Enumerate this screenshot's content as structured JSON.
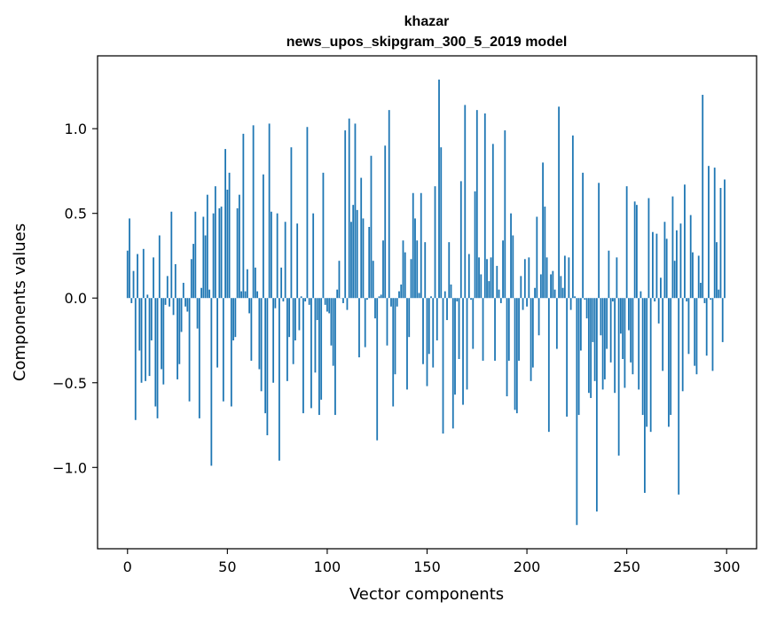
{
  "chart_data": {
    "type": "bar",
    "title_lines": [
      "khazar",
      "news_upos_skipgram_300_5_2019 model"
    ],
    "xlabel": "Vector components",
    "ylabel": "Components values",
    "xlim": [
      -15,
      315
    ],
    "ylim": [
      -1.48,
      1.43
    ],
    "xticks": [
      0,
      50,
      100,
      150,
      200,
      250,
      300
    ],
    "xtick_labels": [
      "0",
      "50",
      "100",
      "150",
      "200",
      "250",
      "300"
    ],
    "yticks": [
      -1.0,
      -0.5,
      0.0,
      0.5,
      1.0
    ],
    "ytick_labels": [
      "−1.0",
      "−0.5",
      "0.0",
      "0.5",
      "1.0"
    ],
    "bar_color": "#1f77b4",
    "values": [
      0.28,
      0.47,
      -0.03,
      0.16,
      -0.72,
      0.26,
      -0.31,
      -0.5,
      0.29,
      -0.49,
      0.02,
      -0.46,
      -0.25,
      0.24,
      -0.64,
      -0.71,
      0.37,
      -0.42,
      -0.51,
      -0.04,
      0.13,
      -0.05,
      0.51,
      -0.1,
      0.2,
      -0.48,
      -0.39,
      -0.2,
      0.09,
      -0.05,
      -0.08,
      -0.61,
      0.23,
      0.32,
      0.51,
      -0.18,
      -0.71,
      0.06,
      0.48,
      0.37,
      0.61,
      0.05,
      -0.99,
      0.5,
      0.66,
      -0.41,
      0.53,
      0.54,
      -0.61,
      0.88,
      0.64,
      0.74,
      -0.64,
      -0.25,
      -0.23,
      0.53,
      0.61,
      0.04,
      0.97,
      0.04,
      0.17,
      -0.09,
      -0.37,
      1.02,
      0.18,
      0.04,
      -0.42,
      -0.55,
      0.73,
      -0.68,
      -0.81,
      1.03,
      0.51,
      -0.5,
      -0.06,
      0.5,
      -0.96,
      0.18,
      -0.02,
      0.45,
      -0.49,
      -0.23,
      0.89,
      -0.39,
      -0.25,
      0.44,
      -0.19,
      0.01,
      -0.68,
      -0.02,
      1.01,
      -0.04,
      -0.65,
      0.5,
      -0.44,
      -0.13,
      -0.69,
      -0.6,
      0.74,
      -0.04,
      -0.08,
      -0.09,
      -0.28,
      -0.4,
      -0.69,
      0.05,
      0.22,
      0.0,
      -0.03,
      0.99,
      -0.07,
      1.06,
      0.45,
      0.55,
      1.03,
      0.52,
      -0.35,
      0.71,
      0.47,
      -0.29,
      -0.01,
      0.42,
      0.84,
      0.22,
      -0.12,
      -0.84,
      0.01,
      0.02,
      0.34,
      0.9,
      -0.28,
      1.11,
      -0.05,
      -0.64,
      -0.45,
      -0.05,
      0.04,
      0.08,
      0.34,
      0.27,
      -0.54,
      -0.23,
      0.23,
      0.62,
      0.47,
      0.34,
      0.03,
      0.62,
      -0.39,
      0.33,
      -0.52,
      -0.33,
      0.01,
      -0.41,
      0.66,
      -0.25,
      1.29,
      0.89,
      -0.8,
      0.04,
      -0.13,
      0.33,
      0.08,
      -0.77,
      -0.57,
      -0.02,
      -0.36,
      0.69,
      -0.63,
      1.14,
      -0.54,
      0.26,
      -0.01,
      -0.3,
      0.63,
      1.11,
      0.24,
      0.14,
      -0.37,
      1.09,
      0.23,
      0.1,
      0.24,
      0.91,
      -0.37,
      0.19,
      0.05,
      -0.03,
      0.34,
      0.99,
      -0.58,
      -0.37,
      0.5,
      0.37,
      -0.66,
      -0.68,
      -0.37,
      0.13,
      -0.07,
      0.23,
      -0.05,
      0.24,
      -0.49,
      -0.41,
      0.06,
      0.48,
      -0.22,
      0.14,
      0.8,
      0.54,
      0.24,
      -0.79,
      0.14,
      0.16,
      0.05,
      -0.3,
      1.13,
      0.13,
      0.06,
      0.25,
      -0.7,
      0.24,
      -0.07,
      0.96,
      0.01,
      -1.34,
      -0.69,
      -0.31,
      0.74,
      -0.01,
      -0.12,
      -0.56,
      -0.59,
      -0.26,
      -0.49,
      -1.26,
      0.68,
      -0.22,
      -0.54,
      -0.48,
      -0.3,
      0.28,
      -0.38,
      -0.02,
      -0.56,
      0.24,
      -0.93,
      -0.21,
      -0.36,
      -0.53,
      0.66,
      -0.19,
      -0.38,
      -0.45,
      0.57,
      0.55,
      -0.54,
      0.04,
      -0.69,
      -1.15,
      -0.76,
      0.59,
      -0.79,
      0.39,
      -0.02,
      0.38,
      -0.15,
      0.12,
      -0.43,
      0.45,
      0.35,
      -0.76,
      -0.69,
      0.6,
      0.22,
      0.4,
      -1.16,
      0.44,
      -0.55,
      0.67,
      -0.02,
      -0.33,
      0.49,
      0.27,
      -0.4,
      -0.45,
      0.25,
      0.09,
      1.2,
      -0.03,
      -0.34,
      0.78,
      -0.01,
      -0.43,
      0.77,
      0.33,
      0.05,
      0.65,
      -0.26,
      0.7
    ]
  }
}
